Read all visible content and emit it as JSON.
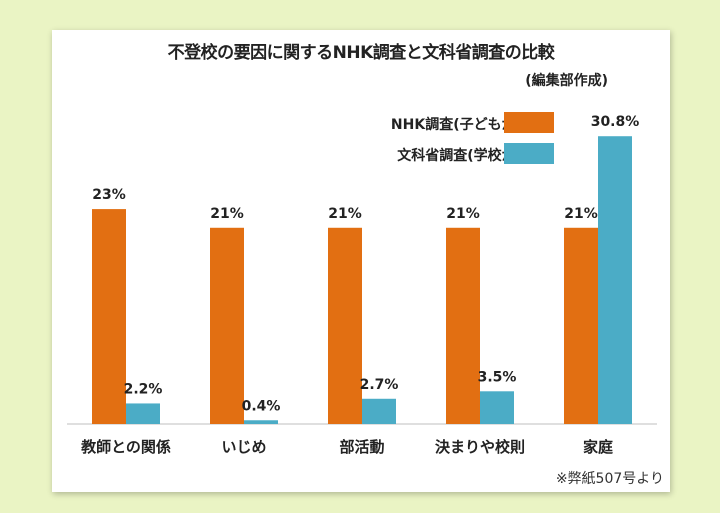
{
  "chart_data": {
    "type": "bar",
    "title": "不登校の要因に関するNHK調査と文科省調査の比較",
    "subtitle": "(編集部作成)",
    "categories": [
      "教師との関係",
      "いじめ",
      "部活動",
      "決まりや校則",
      "家庭"
    ],
    "series": [
      {
        "name": "NHK調査(子どもが回答)",
        "color": "#e26f12",
        "values": [
          23,
          21,
          21,
          21,
          21
        ],
        "labels": [
          "23%",
          "21%",
          "21%",
          "21%",
          "21%"
        ]
      },
      {
        "name": "文科省調査(学校が回答)",
        "color": "#4bacc6",
        "values": [
          2.2,
          0.4,
          2.7,
          3.5,
          30.8
        ],
        "labels": [
          "2.2%",
          "0.4%",
          "2.7%",
          "3.5%",
          "30.8%"
        ]
      }
    ],
    "xlabel": "",
    "ylabel": "",
    "ylim": [
      0,
      32
    ],
    "grid": false,
    "legend": "top-right"
  },
  "source_note": "※弊紙507号より"
}
